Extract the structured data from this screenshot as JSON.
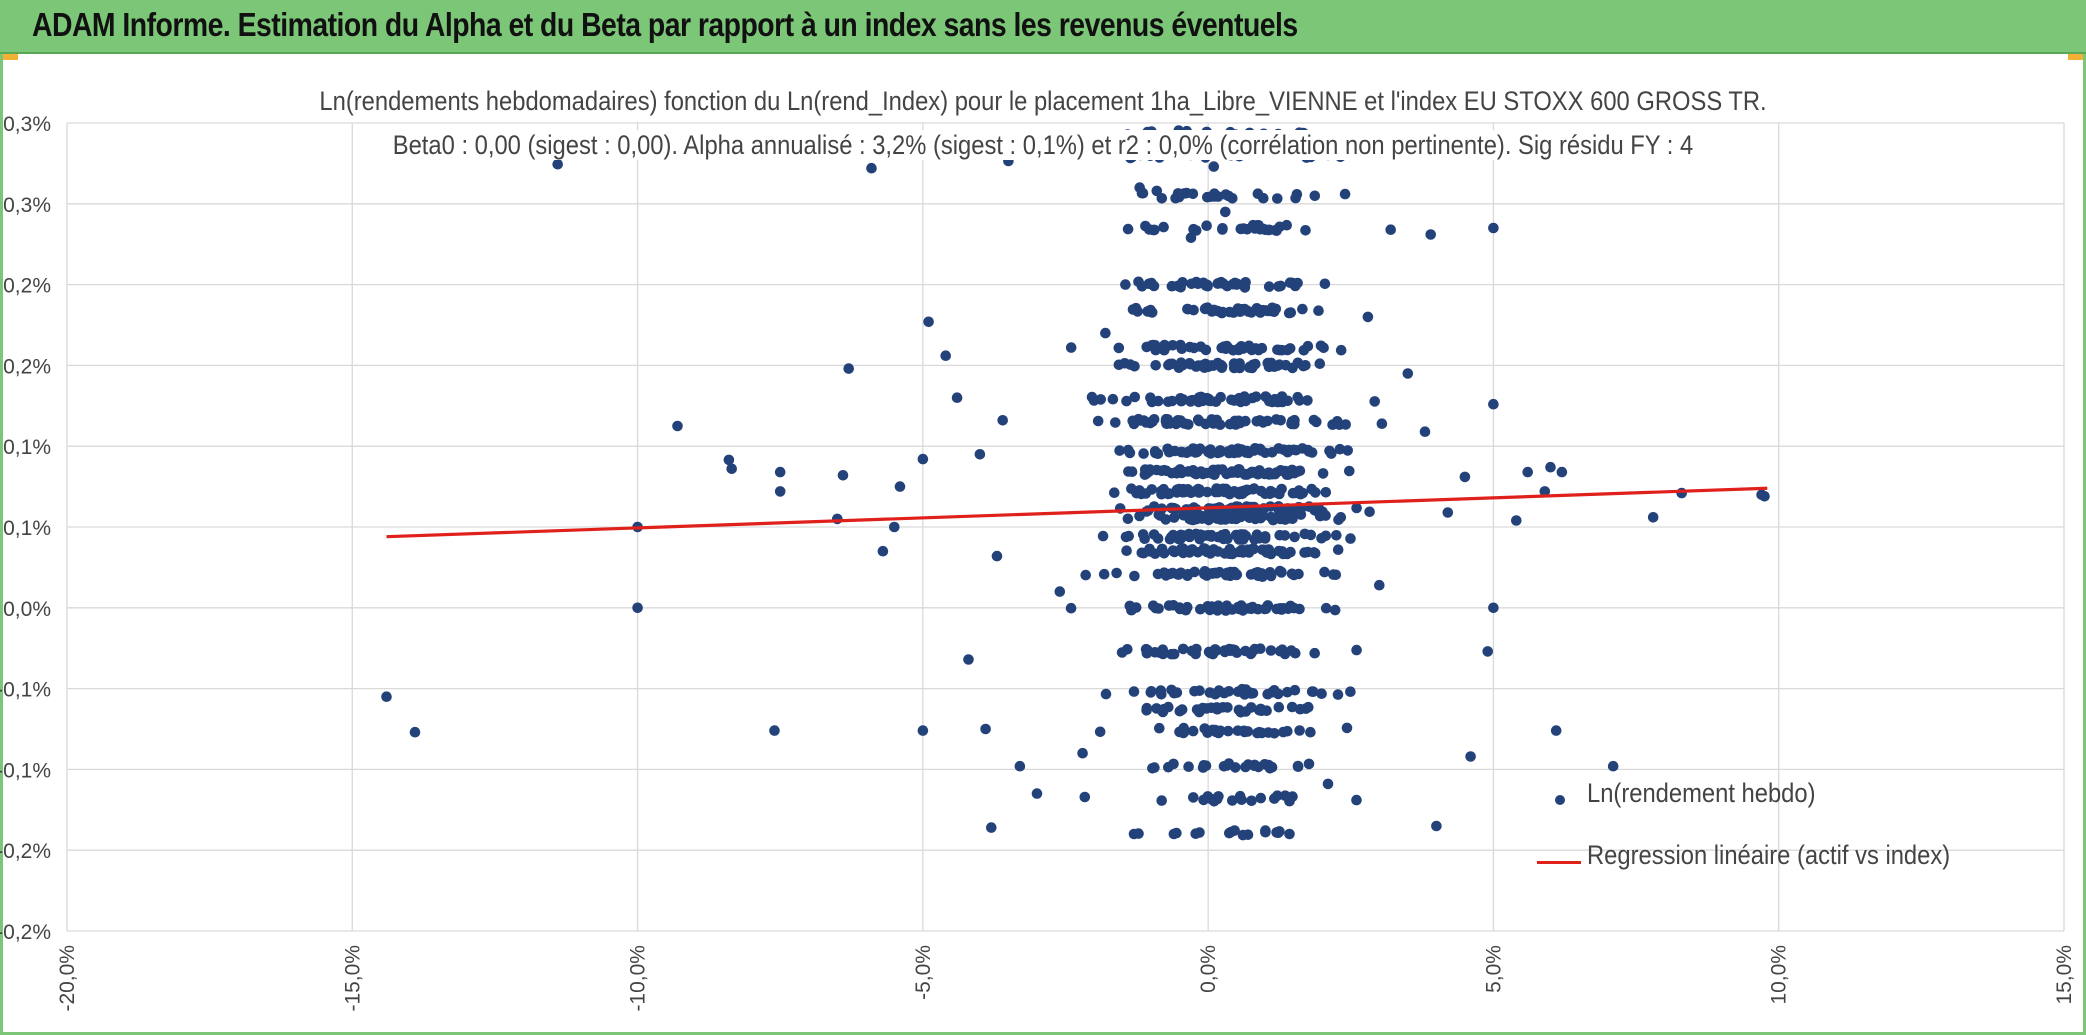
{
  "header": {
    "title": "ADAM Informe. Estimation du Alpha et du Beta par rapport à un index sans les revenus éventuels"
  },
  "chart_data": {
    "type": "scatter",
    "title": "Ln(rendements hebdomadaires) fonction du Ln(rend_Index) pour le placement 1ha_Libre_VIENNE et l'index EU STOXX 600 GROSS TR.",
    "subtitle": "Beta0 : 0,00 (sigest : 0,00). Alpha annualisé : 3,2% (sigest : 0,1%) et r2 : 0,0% (corrélation non pertinente). Sig résidu FY : 4",
    "xlim": [
      -20,
      15
    ],
    "ylim": [
      -0.2,
      0.3
    ],
    "x_tick_labels": [
      "-20,0%",
      "-15,0%",
      "-10,0%",
      "-5,0%",
      "0,0%",
      "5,0%",
      "10,0%",
      "15,0%"
    ],
    "y_tick_labels": [
      "-0,2%",
      "-0,2%",
      "-0,1%",
      "-0,1%",
      "0,0%",
      "0,1%",
      "0,1%",
      "0,2%",
      "0,2%",
      "0,3%",
      "0,3%"
    ],
    "grid": true,
    "legend_position": "bottom-right",
    "series": [
      {
        "name": "Ln(rendement hebdo)",
        "kind": "scatter",
        "color": "#24427a",
        "points": [
          [
            -11.4,
            0.2745
          ],
          [
            -5.9,
            0.272
          ],
          [
            -3.5,
            0.2765
          ],
          [
            -14.4,
            -0.055
          ],
          [
            -13.9,
            -0.077
          ],
          [
            -10.0,
            0.05
          ],
          [
            -10.0,
            0.0
          ],
          [
            -9.3,
            0.1125
          ],
          [
            -8.4,
            0.0915
          ],
          [
            -8.35,
            0.086
          ],
          [
            -7.6,
            -0.076
          ],
          [
            -7.5,
            0.084
          ],
          [
            -7.5,
            0.072
          ],
          [
            -6.5,
            0.055
          ],
          [
            -6.4,
            0.082
          ],
          [
            -6.3,
            0.148
          ],
          [
            -5.7,
            0.035
          ],
          [
            -5.5,
            0.05
          ],
          [
            -5.4,
            0.075
          ],
          [
            -5.0,
            -0.076
          ],
          [
            -5.0,
            0.092
          ],
          [
            -4.9,
            0.177
          ],
          [
            -4.6,
            0.156
          ],
          [
            -4.4,
            0.13
          ],
          [
            -4.2,
            -0.032
          ],
          [
            -4.0,
            0.095
          ],
          [
            -3.9,
            -0.075
          ],
          [
            -3.8,
            -0.136
          ],
          [
            -3.7,
            0.032
          ],
          [
            -3.6,
            0.116
          ],
          [
            -3.3,
            -0.098
          ],
          [
            -3.0,
            -0.115
          ],
          [
            -2.6,
            0.01
          ],
          [
            -2.4,
            0.161
          ],
          [
            -2.2,
            -0.09
          ],
          [
            -1.8,
            0.17
          ],
          [
            -1.5,
            0.283
          ],
          [
            -1.3,
            -0.14
          ],
          [
            -1.2,
            0.26
          ],
          [
            -1.0,
            0.183
          ],
          [
            -0.9,
            0.258
          ],
          [
            -0.6,
            -0.14
          ],
          [
            -0.3,
            0.229
          ],
          [
            -0.1,
            0.128
          ],
          [
            0.1,
            0.273
          ],
          [
            0.3,
            0.245
          ],
          [
            0.4,
            0.28
          ],
          [
            0.5,
            0.2
          ],
          [
            0.9,
            0.085
          ],
          [
            1.2,
            -0.139
          ],
          [
            1.6,
            0.294
          ],
          [
            1.8,
            0.279
          ],
          [
            2.1,
            -0.109
          ],
          [
            2.4,
            0.256
          ],
          [
            2.6,
            -0.119
          ],
          [
            2.8,
            0.18
          ],
          [
            3.0,
            0.014
          ],
          [
            3.2,
            0.234
          ],
          [
            3.5,
            0.145
          ],
          [
            3.8,
            0.109
          ],
          [
            3.9,
            0.231
          ],
          [
            4.0,
            -0.135
          ],
          [
            4.2,
            0.059
          ],
          [
            4.5,
            0.081
          ],
          [
            4.6,
            -0.092
          ],
          [
            4.9,
            -0.027
          ],
          [
            5.0,
            0.235
          ],
          [
            5.0,
            0.126
          ],
          [
            5.0,
            0.0
          ],
          [
            5.4,
            0.054
          ],
          [
            5.6,
            0.084
          ],
          [
            5.9,
            0.072
          ],
          [
            6.0,
            0.087
          ],
          [
            6.1,
            -0.076
          ],
          [
            6.2,
            0.084
          ],
          [
            7.1,
            -0.098
          ],
          [
            7.8,
            0.056
          ],
          [
            8.3,
            0.071
          ],
          [
            9.7,
            0.07
          ],
          [
            9.75,
            0.069
          ]
        ]
      },
      {
        "name": "Regression linéaire (actif vs index)",
        "kind": "line",
        "color": "#e0201b",
        "points": [
          [
            -14.4,
            0.044
          ],
          [
            9.8,
            0.074
          ]
        ]
      }
    ],
    "cluster": {
      "x_center": 0.3,
      "x_spread": 1.5,
      "y_levels": [
        -0.139,
        -0.118,
        -0.098,
        -0.076,
        -0.063,
        -0.052,
        -0.027,
        0.0,
        0.021,
        0.035,
        0.044,
        0.056,
        0.061,
        0.072,
        0.084,
        0.097,
        0.115,
        0.129,
        0.15,
        0.161,
        0.184,
        0.2,
        0.235,
        0.255,
        0.28,
        0.294
      ]
    }
  }
}
